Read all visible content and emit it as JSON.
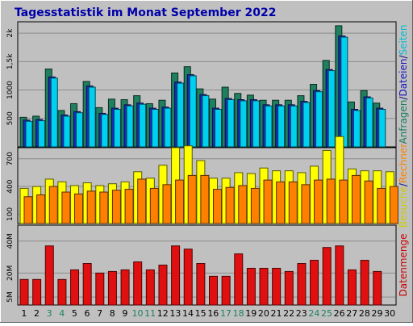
{
  "chart_data": {
    "type": "bar",
    "title": "Tagesstatistik im Monat September 2022",
    "days": [
      "1",
      "2",
      "3",
      "4",
      "5",
      "6",
      "7",
      "8",
      "9",
      "10",
      "11",
      "12",
      "13",
      "14",
      "15",
      "16",
      "17",
      "18",
      "19",
      "20",
      "21",
      "22",
      "23",
      "24",
      "25",
      "26",
      "27",
      "28",
      "29",
      "30"
    ],
    "weekend_days": [
      "3",
      "4",
      "10",
      "11",
      "17",
      "18",
      "24",
      "25"
    ],
    "panels": [
      {
        "id": "top",
        "yticks": [
          "500",
          "1000",
          "1,5k",
          "2k"
        ],
        "ylim": [
          0,
          2200
        ],
        "legend": [
          {
            "text": "Anfragen",
            "color": "#1a7a5a"
          },
          {
            "text": "/",
            "color": "#000080"
          },
          {
            "text": "Dateien",
            "color": "#1818c0"
          },
          {
            "text": "/",
            "color": "#000080"
          },
          {
            "text": "Seiten",
            "color": "#00bcd8"
          }
        ],
        "series": [
          {
            "name": "Anfragen",
            "color": "#1f7f5f",
            "values": [
              520,
              540,
              1370,
              640,
              760,
              1150,
              690,
              840,
              830,
              900,
              760,
              820,
              1300,
              1410,
              1020,
              840,
              1050,
              940,
              910,
              820,
              820,
              820,
              900,
              1100,
              1520,
              2130,
              790,
              990,
              770,
              0
            ]
          },
          {
            "name": "Dateien",
            "color": "#1a2cc0",
            "values": [
              470,
              480,
              1230,
              560,
              620,
              1070,
              590,
              680,
              740,
              770,
              680,
              700,
              1140,
              1270,
              920,
              680,
              850,
              830,
              830,
              740,
              740,
              740,
              800,
              990,
              1360,
              1950,
              660,
              880,
              680,
              0
            ]
          },
          {
            "name": "Seiten",
            "color": "#00d0f0",
            "values": [
              450,
              460,
              1210,
              540,
              600,
              1050,
              570,
              660,
              720,
              750,
              660,
              680,
              1120,
              1250,
              900,
              660,
              830,
              810,
              810,
              720,
              720,
              720,
              780,
              970,
              1340,
              1930,
              640,
              860,
              660,
              0
            ]
          }
        ]
      },
      {
        "id": "mid",
        "yticks": [
          "100",
          "400",
          "700"
        ],
        "ylim": [
          0,
          820
        ],
        "legend": [
          {
            "text": "Besuche",
            "color": "#cccc00"
          },
          {
            "text": "/",
            "color": "#000080"
          },
          {
            "text": "Rechner",
            "color": "#ff8000"
          }
        ],
        "series": [
          {
            "name": "Besuche",
            "color": "#ffff00",
            "values": [
              380,
              400,
              480,
              450,
              410,
              440,
              410,
              430,
              450,
              560,
              490,
              630,
              820,
              840,
              680,
              490,
              490,
              550,
              540,
              600,
              570,
              570,
              550,
              620,
              790,
              940,
              590,
              570,
              570,
              560
            ]
          },
          {
            "name": "Rechner",
            "color": "#ff8000",
            "values": [
              290,
              310,
              400,
              340,
              320,
              350,
              340,
              360,
              370,
              480,
              380,
              420,
              470,
              520,
              520,
              370,
              390,
              410,
              380,
              470,
              450,
              450,
              420,
              470,
              480,
              470,
              520,
              460,
              380,
              400
            ]
          }
        ]
      },
      {
        "id": "bot",
        "yticks": [
          "5M",
          "20M",
          "40M"
        ],
        "ylim": [
          0,
          50
        ],
        "legend": [
          {
            "text": "Datenmenge",
            "color": "#cc0000"
          }
        ],
        "series": [
          {
            "name": "Datenmenge",
            "color": "#e01010",
            "values": [
              16,
              16,
              37,
              16,
              22,
              26,
              20,
              21,
              22,
              27,
              22,
              25,
              37,
              35,
              26,
              18,
              18,
              32,
              23,
              23,
              23,
              21,
              26,
              28,
              36,
              37,
              22,
              28,
              21,
              0
            ]
          }
        ]
      }
    ]
  }
}
